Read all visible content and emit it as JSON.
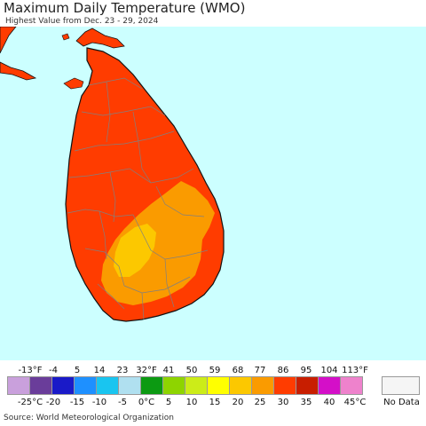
{
  "header": {
    "title": "Maximum Daily Temperature (WMO)",
    "subtitle": "Highest Value from Dec. 23 - 29, 2024"
  },
  "map": {
    "ocean_color": "#ccffff",
    "region_outline_color": "#808080",
    "coast_color": "#111111"
  },
  "legend": {
    "fahrenheit_ticks": [
      "-13°F",
      "-4",
      "5",
      "14",
      "23",
      "32°F",
      "41",
      "50",
      "59",
      "68",
      "77",
      "86",
      "95",
      "104",
      "113°F"
    ],
    "celsius_ticks": [
      "-25°C",
      "-20",
      "-15",
      "-10",
      "-5",
      "0°C",
      "5",
      "10",
      "15",
      "20",
      "25",
      "30",
      "35",
      "40",
      "45°C"
    ],
    "colors": [
      "#c9a0dc",
      "#6a3d9a",
      "#1a1ac8",
      "#1e90ff",
      "#19c5f0",
      "#b0e0f0",
      "#0c9a12",
      "#8ed400",
      "#ccec18",
      "#ffff00",
      "#fcc800",
      "#fa9b00",
      "#ff3c00",
      "#c81e00",
      "#d40fc8",
      "#ee82cc"
    ],
    "no_data_label": "No Data",
    "no_data_color": "#f5f5f5"
  },
  "footer": {
    "source": "Source: World Meteorological Organization"
  }
}
